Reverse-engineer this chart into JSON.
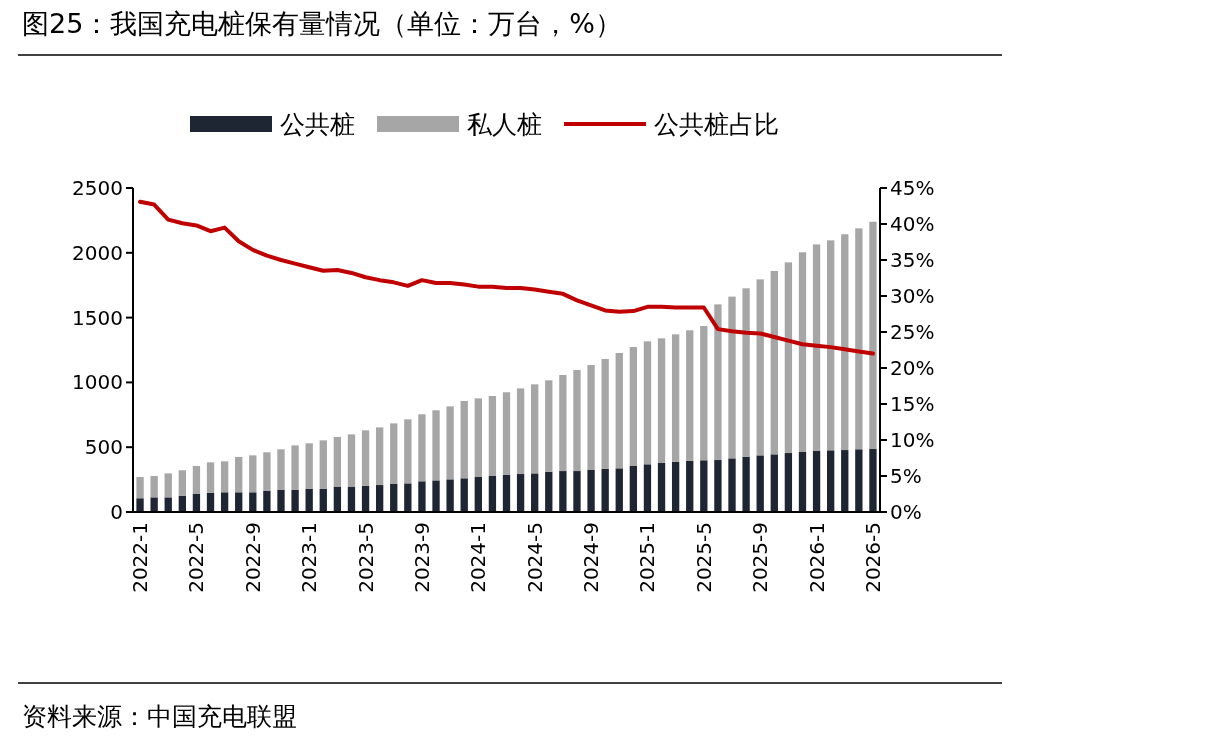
{
  "chart_data": {
    "type": "bar",
    "stacked": true,
    "title": "图25：我国充电桩保有量情况（单位：万台，%）",
    "categories": [
      "2022-1",
      null,
      null,
      null,
      "2022-5",
      null,
      null,
      null,
      "2022-9",
      null,
      null,
      null,
      "2023-1",
      null,
      null,
      null,
      "2023-5",
      null,
      null,
      null,
      "2023-9",
      null,
      null,
      null,
      "2024-1",
      null,
      null,
      null,
      "2024-5",
      null,
      null,
      null,
      "2024-9",
      null,
      null,
      null,
      "2025-1",
      null,
      null,
      null,
      "2025-5",
      null,
      null,
      null,
      "2025-9",
      null,
      null,
      null,
      "2026-1",
      null,
      null,
      null,
      "2026-5"
    ],
    "series": [
      {
        "name": "公共桩",
        "color": "#1f2633",
        "values": [
          106,
          113,
          113,
          124,
          139,
          147,
          152,
          152,
          152,
          162,
          170,
          170,
          178,
          178,
          193,
          193,
          203,
          208,
          216,
          221,
          237,
          244,
          252,
          260,
          270,
          278,
          286,
          293,
          298,
          311,
          316,
          316,
          324,
          332,
          337,
          355,
          368,
          378,
          386,
          394,
          399,
          401,
          414,
          427,
          437,
          445,
          455,
          463,
          471,
          476,
          478,
          484,
          486
        ]
      },
      {
        "name": "私人桩",
        "color": "#a6a6a6",
        "values": [
          164,
          165,
          185,
          198,
          216,
          236,
          239,
          273,
          285,
          299,
          314,
          344,
          352,
          375,
          386,
          406,
          427,
          445,
          468,
          494,
          517,
          541,
          563,
          597,
          607,
          617,
          638,
          661,
          687,
          705,
          741,
          780,
          810,
          849,
          890,
          918,
          949,
          962,
          985,
          1008,
          1036,
          1201,
          1248,
          1299,
          1358,
          1415,
          1471,
          1541,
          1594,
          1620,
          1665,
          1705,
          1754
        ]
      },
      {
        "name": "公共桩占比",
        "type": "line",
        "axis": "y2",
        "color": "#c00000",
        "values": [
          43.1,
          42.7,
          40.6,
          40.1,
          39.8,
          39.0,
          39.5,
          37.6,
          36.4,
          35.6,
          35.0,
          34.5,
          34.0,
          33.5,
          33.6,
          33.2,
          32.6,
          32.2,
          31.9,
          31.4,
          32.2,
          31.8,
          31.8,
          31.6,
          31.3,
          31.3,
          31.1,
          31.1,
          30.9,
          30.6,
          30.3,
          29.4,
          28.7,
          28.0,
          27.8,
          27.9,
          28.5,
          28.5,
          28.4,
          28.4,
          28.4,
          25.4,
          25.1,
          24.9,
          24.8,
          24.3,
          23.8,
          23.3,
          23.1,
          22.9,
          22.6,
          22.3,
          22.0
        ]
      }
    ],
    "ylim": [
      0,
      2500
    ],
    "yticks": [
      0,
      500,
      1000,
      1500,
      2000,
      2500
    ],
    "y2lim": [
      0,
      45
    ],
    "y2ticks": [
      {
        "value": 0,
        "label": "0%"
      },
      {
        "value": 5,
        "label": "5%"
      },
      {
        "value": 10,
        "label": "10%"
      },
      {
        "value": 15,
        "label": "15%"
      },
      {
        "value": 20,
        "label": "20%"
      },
      {
        "value": 25,
        "label": "25%"
      },
      {
        "value": 30,
        "label": "30%"
      },
      {
        "value": 35,
        "label": "35%"
      },
      {
        "value": 40,
        "label": "40%"
      },
      {
        "value": 45,
        "label": "45%"
      }
    ],
    "legend": "top",
    "annotations": [
      "资料来源：中国充电联盟"
    ]
  }
}
